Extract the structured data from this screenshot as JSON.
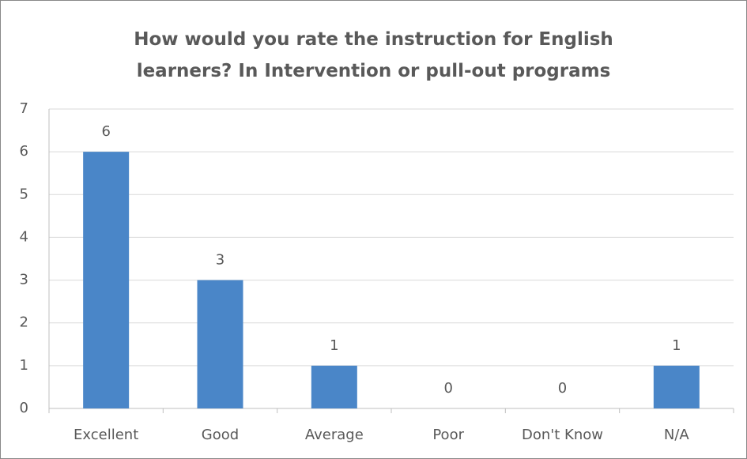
{
  "chart_data": {
    "type": "bar",
    "title": "How would you rate the instruction for English learners? In Intervention or pull-out programs",
    "categories": [
      "Excellent",
      "Good",
      "Average",
      "Poor",
      "Don't Know",
      "N/A"
    ],
    "values": [
      6,
      3,
      1,
      0,
      0,
      1
    ],
    "color": "#4a86c8",
    "ylim": [
      0,
      7
    ],
    "yticks": [
      0,
      1,
      2,
      3,
      4,
      5,
      6,
      7
    ],
    "grid": true
  }
}
